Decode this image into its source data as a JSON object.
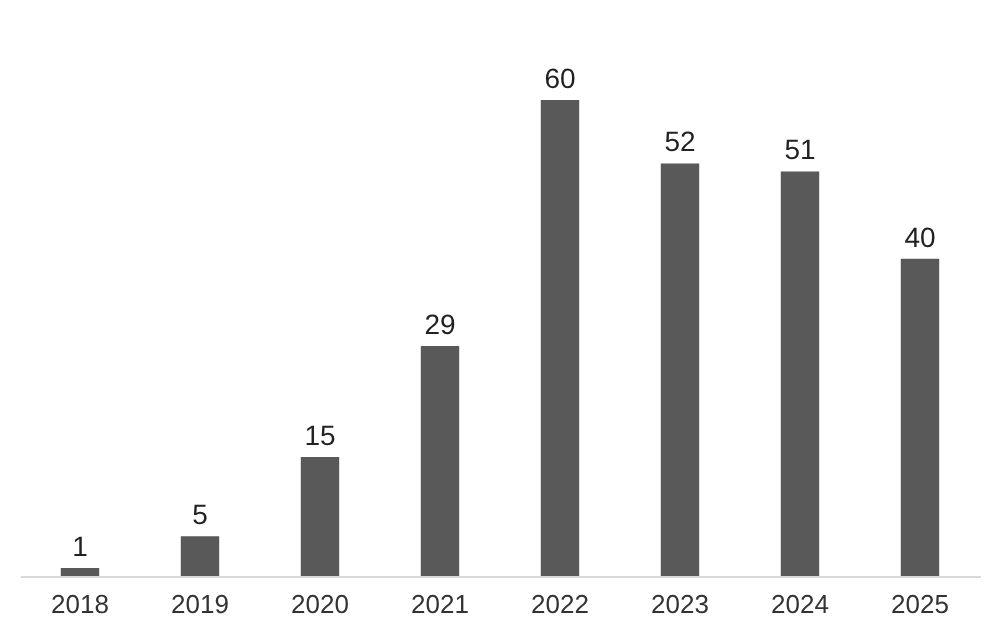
{
  "chart_data": {
    "type": "bar",
    "categories": [
      "2018",
      "2019",
      "2020",
      "2021",
      "2022",
      "2023",
      "2024",
      "2025"
    ],
    "values": [
      1,
      5,
      15,
      29,
      60,
      52,
      51,
      40
    ],
    "color": "#595959",
    "data_labels": true,
    "grid": false
  }
}
